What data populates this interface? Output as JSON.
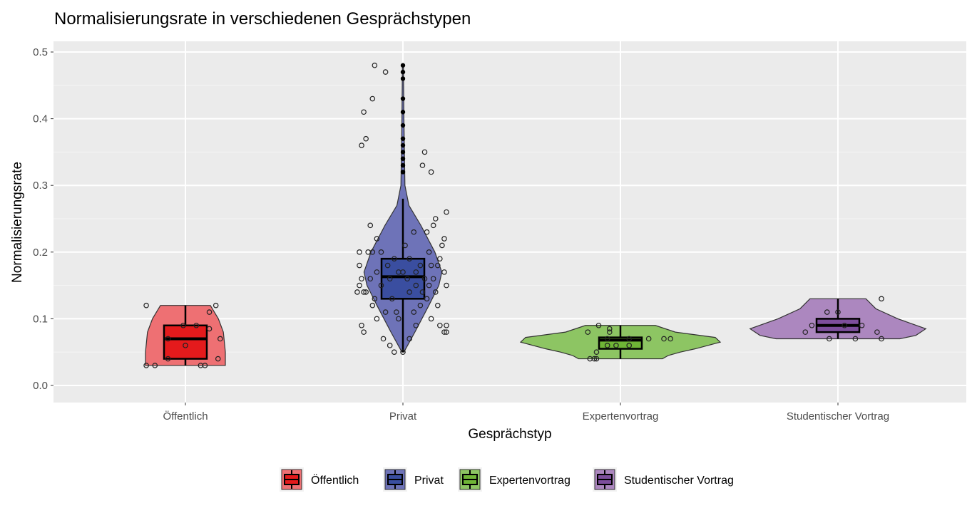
{
  "chart_data": {
    "type": "violin",
    "title": "Normalisierungsrate in verschiedenen Gesprächstypen",
    "xlabel": "Gesprächstyp",
    "ylabel": "Normalisierungsrate",
    "ylim": [
      -0.025,
      0.51
    ],
    "yticks": [
      0.0,
      0.1,
      0.2,
      0.3,
      0.4,
      0.5
    ],
    "ytick_labels": [
      "0.0",
      "0.1",
      "0.2",
      "0.3",
      "0.4",
      "0.5"
    ],
    "grid": true,
    "legend_position": "bottom",
    "categories": [
      "Öffentlich",
      "Privat",
      "Expertenvortrag",
      "Studentischer Vortrag"
    ],
    "groups": [
      {
        "name": "Öffentlich",
        "fill": "#e41a1c",
        "violin_fill": "#ee7073",
        "box": {
          "min": 0.03,
          "q1": 0.04,
          "median": 0.07,
          "q3": 0.09,
          "max": 0.12
        },
        "violin": [
          [
            0.03,
            0.4
          ],
          [
            0.05,
            0.4
          ],
          [
            0.08,
            0.38
          ],
          [
            0.1,
            0.33
          ],
          [
            0.12,
            0.25
          ]
        ],
        "outliers": [],
        "points": [
          [
            -0.18,
            0.12
          ],
          [
            0.14,
            0.12
          ],
          [
            0.11,
            0.11
          ],
          [
            -0.01,
            0.09
          ],
          [
            0.05,
            0.09
          ],
          [
            0.11,
            0.085
          ],
          [
            0.16,
            0.07
          ],
          [
            -0.08,
            0.07
          ],
          [
            0.0,
            0.06
          ],
          [
            -0.08,
            0.04
          ],
          [
            0.15,
            0.04
          ],
          [
            -0.18,
            0.03
          ],
          [
            -0.14,
            0.03
          ],
          [
            0.07,
            0.03
          ],
          [
            0.09,
            0.03
          ]
        ]
      },
      {
        "name": "Privat",
        "fill": "#3a4ea0",
        "violin_fill": "#6e73b8",
        "box": {
          "min": 0.05,
          "q1": 0.13,
          "median": 0.163,
          "q3": 0.19,
          "max": 0.28
        },
        "violin": [
          [
            0.05,
            0.01
          ],
          [
            0.08,
            0.12
          ],
          [
            0.12,
            0.26
          ],
          [
            0.15,
            0.36
          ],
          [
            0.17,
            0.39
          ],
          [
            0.2,
            0.32
          ],
          [
            0.24,
            0.18
          ],
          [
            0.27,
            0.06
          ],
          [
            0.3,
            0.02
          ],
          [
            0.4,
            0.01
          ],
          [
            0.48,
            0.005
          ]
        ],
        "outliers": [
          0.48,
          0.47,
          0.46,
          0.43,
          0.41,
          0.39,
          0.37,
          0.36,
          0.35,
          0.34,
          0.33,
          0.32
        ],
        "points": [
          [
            -0.13,
            0.48
          ],
          [
            -0.08,
            0.47
          ],
          [
            -0.14,
            0.43
          ],
          [
            -0.18,
            0.41
          ],
          [
            -0.17,
            0.37
          ],
          [
            -0.19,
            0.36
          ],
          [
            0.1,
            0.35
          ],
          [
            0.09,
            0.33
          ],
          [
            0.13,
            0.32
          ],
          [
            0.2,
            0.26
          ],
          [
            0.15,
            0.25
          ],
          [
            0.14,
            0.24
          ],
          [
            -0.15,
            0.24
          ],
          [
            0.05,
            0.23
          ],
          [
            0.11,
            0.23
          ],
          [
            0.19,
            0.22
          ],
          [
            -0.12,
            0.22
          ],
          [
            0.01,
            0.21
          ],
          [
            0.18,
            0.21
          ],
          [
            -0.2,
            0.2
          ],
          [
            -0.16,
            0.2
          ],
          [
            -0.14,
            0.2
          ],
          [
            -0.1,
            0.2
          ],
          [
            0.12,
            0.2
          ],
          [
            0.17,
            0.19
          ],
          [
            -0.04,
            0.19
          ],
          [
            0.03,
            0.19
          ],
          [
            -0.2,
            0.18
          ],
          [
            0.13,
            0.18
          ],
          [
            0.16,
            0.18
          ],
          [
            -0.07,
            0.18
          ],
          [
            0.08,
            0.18
          ],
          [
            -0.12,
            0.17
          ],
          [
            -0.02,
            0.17
          ],
          [
            0.0,
            0.17
          ],
          [
            0.06,
            0.17
          ],
          [
            0.19,
            0.17
          ],
          [
            -0.15,
            0.16
          ],
          [
            -0.19,
            0.16
          ],
          [
            0.1,
            0.16
          ],
          [
            0.14,
            0.16
          ],
          [
            -0.06,
            0.16
          ],
          [
            0.02,
            0.16
          ],
          [
            -0.2,
            0.15
          ],
          [
            -0.1,
            0.15
          ],
          [
            0.2,
            0.15
          ],
          [
            0.06,
            0.15
          ],
          [
            0.12,
            0.15
          ],
          [
            -0.21,
            0.14
          ],
          [
            -0.18,
            0.14
          ],
          [
            -0.17,
            0.14
          ],
          [
            0.03,
            0.14
          ],
          [
            0.09,
            0.14
          ],
          [
            0.15,
            0.14
          ],
          [
            -0.13,
            0.13
          ],
          [
            0.11,
            0.13
          ],
          [
            -0.05,
            0.13
          ],
          [
            -0.14,
            0.12
          ],
          [
            0.08,
            0.12
          ],
          [
            0.16,
            0.12
          ],
          [
            -0.08,
            0.11
          ],
          [
            -0.03,
            0.11
          ],
          [
            0.05,
            0.11
          ],
          [
            -0.12,
            0.1
          ],
          [
            0.13,
            0.1
          ],
          [
            -0.02,
            0.1
          ],
          [
            0.17,
            0.09
          ],
          [
            0.2,
            0.09
          ],
          [
            -0.19,
            0.09
          ],
          [
            0.06,
            0.09
          ],
          [
            -0.18,
            0.08
          ],
          [
            0.19,
            0.08
          ],
          [
            0.2,
            0.08
          ],
          [
            -0.09,
            0.07
          ],
          [
            0.03,
            0.07
          ],
          [
            -0.06,
            0.06
          ],
          [
            -0.04,
            0.05
          ],
          [
            0.0,
            0.05
          ]
        ]
      },
      {
        "name": "Expertenvortrag",
        "fill": "#6fb536",
        "violin_fill": "#8dc563",
        "box": {
          "min": 0.04,
          "q1": 0.055,
          "median": 0.068,
          "q3": 0.072,
          "max": 0.09
        },
        "violin": [
          [
            0.04,
            0.42
          ],
          [
            0.045,
            0.48
          ],
          [
            0.05,
            0.6
          ],
          [
            0.055,
            0.75
          ],
          [
            0.065,
            1.0
          ],
          [
            0.072,
            0.95
          ],
          [
            0.08,
            0.55
          ],
          [
            0.09,
            0.35
          ]
        ],
        "outliers": [],
        "points": [
          [
            -0.1,
            0.09
          ],
          [
            -0.05,
            0.085
          ],
          [
            -0.15,
            0.08
          ],
          [
            -0.05,
            0.08
          ],
          [
            -0.06,
            0.07
          ],
          [
            0.13,
            0.07
          ],
          [
            0.2,
            0.07
          ],
          [
            0.23,
            0.07
          ],
          [
            0.04,
            0.07
          ],
          [
            -0.06,
            0.06
          ],
          [
            -0.02,
            0.06
          ],
          [
            0.04,
            0.06
          ],
          [
            -0.11,
            0.05
          ],
          [
            -0.14,
            0.04
          ],
          [
            -0.12,
            0.04
          ],
          [
            -0.11,
            0.04
          ]
        ]
      },
      {
        "name": "Studentischer Vortrag",
        "fill": "#7d4e9c",
        "violin_fill": "#ac87bf",
        "box": {
          "min": 0.07,
          "q1": 0.08,
          "median": 0.09,
          "q3": 0.1,
          "max": 0.13
        },
        "violin": [
          [
            0.07,
            0.62
          ],
          [
            0.075,
            0.78
          ],
          [
            0.085,
            0.88
          ],
          [
            0.1,
            0.6
          ],
          [
            0.115,
            0.38
          ],
          [
            0.13,
            0.28
          ]
        ],
        "outliers": [],
        "points": [
          [
            0.2,
            0.13
          ],
          [
            -0.05,
            0.11
          ],
          [
            0.0,
            0.11
          ],
          [
            -0.12,
            0.09
          ],
          [
            0.11,
            0.09
          ],
          [
            -0.15,
            0.08
          ],
          [
            0.03,
            0.09
          ],
          [
            0.18,
            0.08
          ],
          [
            -0.04,
            0.07
          ],
          [
            0.08,
            0.07
          ],
          [
            0.2,
            0.07
          ]
        ]
      }
    ]
  }
}
